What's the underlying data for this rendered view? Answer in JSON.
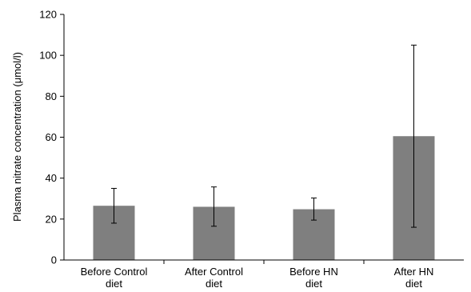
{
  "chart_data": {
    "type": "bar",
    "title": "",
    "xlabel": "",
    "ylabel": "Plasma nitrate concentration (μmol/l)",
    "categories": [
      [
        "Before Control",
        "diet"
      ],
      [
        "After Control",
        "diet"
      ],
      [
        "Before HN",
        "diet"
      ],
      [
        "After HN",
        "diet"
      ]
    ],
    "values": [
      26.5,
      26,
      24.8,
      60.5
    ],
    "error_bars": [
      {
        "low": 18,
        "high": 35
      },
      {
        "low": 16.5,
        "high": 35.7
      },
      {
        "low": 19.5,
        "high": 30.3
      },
      {
        "low": 16,
        "high": 105
      }
    ],
    "ylim": [
      0,
      120
    ],
    "yticks": [
      0,
      20,
      40,
      60,
      80,
      100,
      120
    ],
    "grid": false,
    "legend": "none",
    "colors": {
      "bar": "#7f7f7f",
      "axis": "#000000",
      "error": "#000000"
    }
  }
}
